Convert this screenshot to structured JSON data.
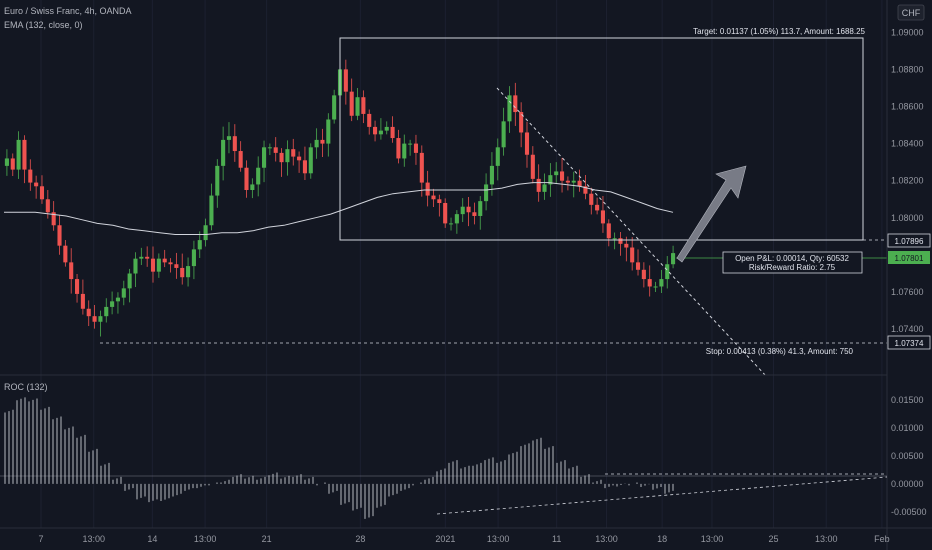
{
  "header": {
    "title": "Euro / Swiss Franc, 4h, OANDA",
    "indicator": "EMA (132, close, 0)",
    "currency_badge": "CHF"
  },
  "roc_panel": {
    "label": "ROC (132)"
  },
  "annotations": {
    "target_label": "Target: 0.01137 (1.05%) 113.7, Amount: 1688.25",
    "stop_label": "Stop: 0.00413 (0.38%) 41.3, Amount: 750",
    "pnl_line1": "Open P&L: 0.00014, Qty: 60532",
    "pnl_line2": "Risk/Reward Ratio: 2.75"
  },
  "price_axis": {
    "ticks": [
      "1.09000",
      "1.08800",
      "1.08600",
      "1.08400",
      "1.08200",
      "1.08000",
      "1.07600",
      "1.07400"
    ],
    "tick_values": [
      1.09,
      1.088,
      1.086,
      1.084,
      1.082,
      1.08,
      1.076,
      1.074
    ],
    "badges": [
      {
        "label": "1.07896",
        "value": 1.07896,
        "style": "dark"
      },
      {
        "label": "1.07801",
        "value": 1.07801,
        "style": "green"
      },
      {
        "label": "1.07374",
        "value": 1.07374,
        "style": "dark"
      }
    ]
  },
  "roc_axis": {
    "ticks": [
      "0.01500",
      "0.01000",
      "0.00500",
      "0.00000",
      "-0.00500"
    ],
    "tick_values": [
      0.015,
      0.01,
      0.005,
      0,
      -0.005
    ]
  },
  "time_axis": {
    "labels": [
      "7",
      "13:00",
      "14",
      "13:00",
      "21",
      "28",
      "2021",
      "13:00",
      "11",
      "13:00",
      "18",
      "13:00",
      "25",
      "13:00",
      "Feb"
    ],
    "positions": [
      0,
      18,
      38,
      56,
      77,
      109,
      138,
      156,
      176,
      193,
      212,
      229,
      250,
      268,
      287
    ]
  },
  "colors": {
    "background": "#131722",
    "up": "#26a69a",
    "up_bright": "#4caf50",
    "down": "#ef5350",
    "ema": "#d1d4dc",
    "roc": "#c8cbd2",
    "green_badge": "#4caf50"
  },
  "chart_data": {
    "type": "candlestick",
    "title": "Euro / Swiss Franc, 4h, OANDA",
    "y_range": [
      1.0718,
      1.0912
    ],
    "bars": 230,
    "close": [
      1.0832,
      1.0826,
      1.0842,
      1.0826,
      1.0819,
      1.0817,
      1.081,
      1.0803,
      1.0796,
      1.0785,
      1.0776,
      1.0767,
      1.0759,
      1.0751,
      1.0747,
      1.0744,
      1.0747,
      1.0752,
      1.0755,
      1.0757,
      1.0762,
      1.077,
      1.0778,
      1.0779,
      1.0778,
      1.0771,
      1.0778,
      1.0776,
      1.0775,
      1.0773,
      1.0768,
      1.0774,
      1.0783,
      1.0788,
      1.0796,
      1.0812,
      1.0828,
      1.0842,
      1.0844,
      1.0836,
      1.0827,
      1.0815,
      1.0818,
      1.0827,
      1.0838,
      1.0838,
      1.0835,
      1.083,
      1.0837,
      1.0833,
      1.0831,
      1.0824,
      1.0838,
      1.0842,
      1.084,
      1.0853,
      1.0866,
      1.088,
      1.0868,
      1.0855,
      1.0865,
      1.0856,
      1.0849,
      1.0845,
      1.0847,
      1.0849,
      1.0843,
      1.0832,
      1.084,
      1.084,
      1.0835,
      1.0819,
      1.0812,
      1.081,
      1.0808,
      1.0797,
      1.0797,
      1.0802,
      1.0806,
      1.0803,
      1.0801,
      1.0809,
      1.0818,
      1.0828,
      1.0838,
      1.0852,
      1.0866,
      1.0857,
      1.0846,
      1.0834,
      1.0821,
      1.0814,
      1.0818,
      1.0823,
      1.0825,
      1.082,
      1.0819,
      1.082,
      1.0817,
      1.0813,
      1.0807,
      1.0804,
      1.0797,
      1.0789,
      1.0789,
      1.0786,
      1.0784,
      1.0776,
      1.0772,
      1.0767,
      1.0763,
      1.0763,
      1.0767,
      1.0775,
      1.0781
    ],
    "ema": [
      1.0803,
      1.0803,
      1.0803,
      1.0802,
      1.0801,
      1.0799,
      1.0797,
      1.0796,
      1.0794,
      1.0793,
      1.0792,
      1.0791,
      1.0791,
      1.0791,
      1.0792,
      1.0792,
      1.0793,
      1.0795,
      1.0796,
      1.0798,
      1.08,
      1.0802,
      1.0805,
      1.0808,
      1.0811,
      1.0813,
      1.0814,
      1.0815,
      1.0815,
      1.0815,
      1.0815,
      1.0815,
      1.0816,
      1.0818,
      1.0819,
      1.0819,
      1.0818,
      1.0817,
      1.0815,
      1.0814,
      1.0811,
      1.0808,
      1.0805,
      1.0803
    ],
    "roc": [
      0.013,
      0.0152,
      0.015,
      0.0135,
      0.0118,
      0.01,
      0.0085,
      0.006,
      0.0035,
      0.001,
      -0.001,
      -0.0025,
      -0.003,
      -0.0028,
      -0.002,
      -0.001,
      -0.0005,
      0.0,
      0.0005,
      0.0015,
      0.0012,
      0.001,
      0.0018,
      0.0012,
      0.0015,
      0.001,
      0.0,
      -0.0015,
      -0.0035,
      -0.0045,
      -0.006,
      -0.004,
      -0.002,
      -0.001,
      0.0,
      0.001,
      0.0025,
      0.004,
      0.003,
      0.0035,
      0.0045,
      0.004,
      0.0055,
      0.007,
      0.008,
      0.0065,
      0.004,
      0.003,
      0.0015,
      0.0005,
      -0.0005,
      -0.0002,
      0.0,
      -0.0003,
      -0.0008,
      -0.0015
    ],
    "roc_y_range": [
      -0.0068,
      0.0182
    ]
  }
}
